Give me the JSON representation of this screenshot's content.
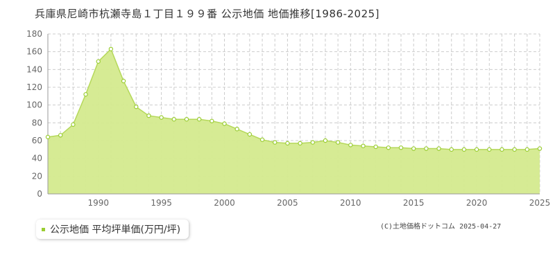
{
  "title": "兵庫県尼崎市杭瀬寺島１丁目１９９番 公示地価 地価推移[1986-2025]",
  "legend_label": "公示地価 平均坪単価(万円/坪)",
  "copyright": "(C)土地価格ドットコム 2025-04-27",
  "colors": {
    "fill": "#d4ea8e",
    "line": "#b5d85a",
    "marker": "#9acd32",
    "grid": "#cccccc",
    "axis": "#999999"
  },
  "chart_data": {
    "type": "area",
    "title": "",
    "xlabel": "",
    "ylabel": "",
    "xlim": [
      1986,
      2025
    ],
    "ylim": [
      0,
      180
    ],
    "yticks": [
      0,
      20,
      40,
      60,
      80,
      100,
      120,
      140,
      160,
      180
    ],
    "xticks": [
      1990,
      1995,
      2000,
      2005,
      2010,
      2015,
      2020,
      2025
    ],
    "grid": true,
    "legend": "bottom-left",
    "series": [
      {
        "name": "公示地価 平均坪単価(万円/坪)",
        "x": [
          1986,
          1987,
          1988,
          1989,
          1990,
          1991,
          1992,
          1993,
          1994,
          1995,
          1996,
          1997,
          1998,
          1999,
          2000,
          2001,
          2002,
          2003,
          2004,
          2005,
          2006,
          2007,
          2008,
          2009,
          2010,
          2011,
          2012,
          2013,
          2014,
          2015,
          2016,
          2017,
          2018,
          2019,
          2020,
          2021,
          2022,
          2023,
          2024,
          2025
        ],
        "values": [
          64,
          66,
          78,
          112,
          149,
          163,
          127,
          98,
          88,
          86,
          84,
          84,
          84,
          82,
          79,
          73,
          67,
          61,
          58,
          57,
          57,
          58,
          60,
          58,
          55,
          54,
          53,
          52,
          52,
          51,
          51,
          51,
          50,
          50,
          50,
          50,
          50,
          50,
          50,
          51
        ]
      }
    ]
  }
}
